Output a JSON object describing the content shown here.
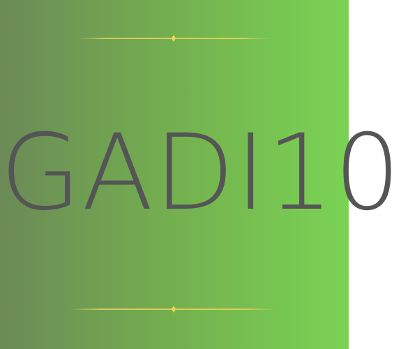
{
  "logo": {
    "text": "GADI10",
    "text_color": "#555555",
    "ornament_color": "#f2d45c"
  },
  "background": {
    "gradient_start": "#6b8a56",
    "gradient_end": "#7ad354"
  },
  "ornaments": {
    "top_icon": "divider-diamond-icon",
    "bottom_icon": "divider-diamond-icon"
  }
}
